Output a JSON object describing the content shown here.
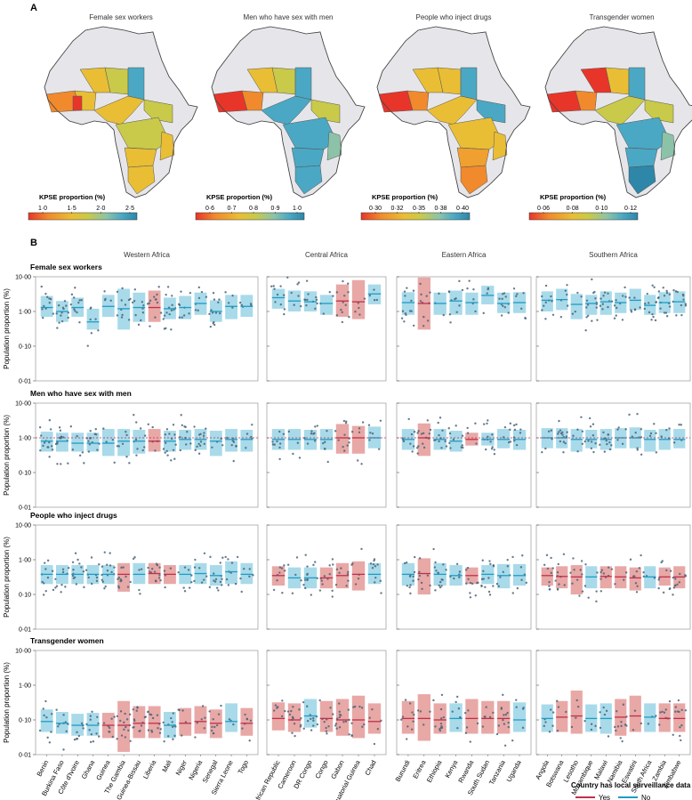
{
  "panel_a": {
    "label": "A",
    "maps": [
      {
        "title": "Female sex workers",
        "legend_title": "KPSE proportion (%)",
        "ticks": [
          "1·0",
          "1·5",
          "2·0",
          "2·5"
        ]
      },
      {
        "title": "Men who have sex with men",
        "legend_title": "KPSE proportion (%)",
        "ticks": [
          "0·6",
          "0·7",
          "0·8",
          "0·9",
          "1·0"
        ]
      },
      {
        "title": "People who inject drugs",
        "legend_title": "KPSE proportion (%)",
        "ticks": [
          "0·30",
          "0·32",
          "0·35",
          "0·38",
          "0·40"
        ]
      },
      {
        "title": "Transgender women",
        "legend_title": "KPSE proportion (%)",
        "ticks": [
          "0·06",
          "0·08",
          "0·10",
          "0·12"
        ]
      }
    ],
    "colorscale": [
      "#e8352a",
      "#f08a2c",
      "#e9be35",
      "#c9c94a",
      "#8cc3a8",
      "#4aa8c4",
      "#2e86a8"
    ]
  },
  "panel_b": {
    "label": "B",
    "ylabel": "Population proportion (%)",
    "y_ticks": [
      "0·01",
      "0·10",
      "1·00",
      "10·00"
    ],
    "legend": {
      "title": "Country has local surveillance data",
      "yes": "Yes",
      "no": "No"
    }
  },
  "colors": {
    "yes": "#c0304a",
    "yes_fill": "#e8a8a6",
    "no": "#1f9cc4",
    "no_fill": "#a8daea",
    "point": "#4a6478",
    "ref": "#c0304a"
  },
  "chart_data": {
    "type": "box-scatter",
    "scale": "log10",
    "ylim": [
      0.01,
      10
    ],
    "regions": [
      {
        "name": "Western Africa",
        "countries": [
          "Benin",
          "Burkina Faso",
          "Côte d'Ivoire",
          "Ghana",
          "Guinea",
          "The Gambia",
          "Guinea-Bissau",
          "Liberia",
          "Mali",
          "Niger",
          "Nigeria",
          "Senegal",
          "Sierra Leone",
          "Togo"
        ]
      },
      {
        "name": "Central Africa",
        "countries": [
          "Central African Republic",
          "Cameroon",
          "DR Congo",
          "Congo",
          "Gabon",
          "Equatorial Guinea",
          "Chad"
        ]
      },
      {
        "name": "Eastern Africa",
        "countries": [
          "Burundi",
          "Eritrea",
          "Ethiopia",
          "Kenya",
          "Rwanda",
          "South Sudan",
          "Tanzania",
          "Uganda"
        ]
      },
      {
        "name": "Southern Africa",
        "countries": [
          "Angola",
          "Botswana",
          "Lesotho",
          "Mozambique",
          "Malawi",
          "Namibia",
          "Eswatini",
          "South Africa",
          "Zambia",
          "Zimbabwe"
        ]
      }
    ],
    "series": [
      {
        "name": "Female sex workers",
        "median": [
          [
            1.3,
            1.0,
            1.3,
            0.5,
            1.4,
            1.2,
            1.3,
            1.3,
            1.2,
            1.3,
            1.7,
            1.0,
            1.4,
            1.4
          ],
          [
            2.5,
            2.0,
            1.9,
            1.7,
            2.0,
            1.9,
            3.2
          ],
          [
            1.8,
            1.7,
            1.7,
            2.0,
            1.8,
            2.9,
            1.7,
            1.8
          ],
          [
            2.1,
            2.2,
            1.6,
            1.7,
            1.9,
            1.8,
            2.1,
            1.5,
            1.8,
            1.9
          ]
        ],
        "low": [
          [
            0.7,
            0.5,
            0.7,
            0.3,
            0.7,
            0.3,
            0.5,
            0.5,
            0.6,
            0.6,
            0.8,
            0.5,
            0.6,
            0.7
          ],
          [
            1.2,
            1.0,
            1.0,
            0.8,
            0.7,
            0.6,
            1.6
          ],
          [
            0.8,
            0.3,
            0.8,
            0.8,
            0.8,
            1.6,
            0.9,
            0.9
          ],
          [
            1.0,
            1.1,
            0.6,
            0.8,
            0.8,
            0.9,
            1.1,
            0.8,
            0.9,
            0.9
          ]
        ],
        "high": [
          [
            2.8,
            2.0,
            2.5,
            1.2,
            3.0,
            4.5,
            3.5,
            4.0,
            2.5,
            2.8,
            3.5,
            2.1,
            3.0,
            3.0
          ],
          [
            4.5,
            4.0,
            3.8,
            3.0,
            6.0,
            8.0,
            6.0
          ],
          [
            3.6,
            9.5,
            3.5,
            4.0,
            3.5,
            5.5,
            3.5,
            3.6
          ],
          [
            3.8,
            4.5,
            3.2,
            3.0,
            3.8,
            3.5,
            4.5,
            3.0,
            3.6,
            3.8
          ]
        ],
        "surveillance": [
          [
            false,
            false,
            false,
            false,
            false,
            false,
            false,
            true,
            false,
            false,
            false,
            false,
            false,
            false
          ],
          [
            false,
            false,
            false,
            false,
            true,
            true,
            false
          ],
          [
            false,
            true,
            false,
            false,
            false,
            false,
            false,
            false
          ],
          [
            false,
            false,
            false,
            false,
            false,
            false,
            false,
            false,
            false,
            false
          ]
        ],
        "ref": null
      },
      {
        "name": "Men who have sex with men",
        "median": [
          [
            0.8,
            0.8,
            0.7,
            0.7,
            0.7,
            0.8,
            0.8,
            0.8,
            0.8,
            0.9,
            0.9,
            0.8,
            0.9,
            0.9
          ],
          [
            0.9,
            0.9,
            0.9,
            0.9,
            1.0,
            1.0,
            1.0
          ],
          [
            0.9,
            1.0,
            0.9,
            0.8,
            0.9,
            0.9,
            0.9,
            0.9
          ],
          [
            1.0,
            1.0,
            0.9,
            0.9,
            0.9,
            1.0,
            1.0,
            0.9,
            0.9,
            0.9
          ]
        ],
        "low": [
          [
            0.4,
            0.4,
            0.4,
            0.4,
            0.3,
            0.3,
            0.35,
            0.4,
            0.4,
            0.45,
            0.45,
            0.3,
            0.4,
            0.4
          ],
          [
            0.45,
            0.45,
            0.45,
            0.45,
            0.35,
            0.35,
            0.5
          ],
          [
            0.45,
            0.3,
            0.45,
            0.4,
            0.6,
            0.6,
            0.5,
            0.45
          ],
          [
            0.5,
            0.5,
            0.4,
            0.5,
            0.45,
            0.5,
            0.5,
            0.4,
            0.45,
            0.5
          ]
        ],
        "high": [
          [
            1.5,
            1.4,
            1.4,
            1.4,
            1.8,
            1.8,
            1.7,
            1.8,
            1.6,
            1.7,
            1.8,
            1.6,
            1.8,
            1.7
          ],
          [
            1.8,
            1.8,
            1.7,
            1.8,
            2.5,
            2.2,
            2.1
          ],
          [
            1.8,
            2.6,
            1.8,
            1.6,
            1.4,
            1.4,
            1.8,
            1.7
          ],
          [
            1.9,
            1.9,
            1.8,
            1.7,
            1.8,
            1.9,
            2.0,
            1.7,
            1.8,
            1.8
          ]
        ],
        "surveillance": [
          [
            false,
            false,
            false,
            false,
            false,
            false,
            false,
            true,
            false,
            false,
            false,
            false,
            false,
            false
          ],
          [
            false,
            false,
            false,
            false,
            true,
            true,
            false
          ],
          [
            false,
            true,
            false,
            false,
            true,
            false,
            false,
            false
          ],
          [
            false,
            false,
            false,
            false,
            false,
            false,
            false,
            false,
            false,
            false
          ]
        ],
        "ref": 1.0
      },
      {
        "name": "People who inject drugs",
        "median": [
          [
            0.38,
            0.38,
            0.38,
            0.38,
            0.38,
            0.38,
            0.38,
            0.4,
            0.38,
            0.38,
            0.4,
            0.35,
            0.45,
            0.38
          ],
          [
            0.35,
            0.3,
            0.3,
            0.3,
            0.35,
            0.38,
            0.38
          ],
          [
            0.38,
            0.4,
            0.38,
            0.35,
            0.35,
            0.38,
            0.35,
            0.35
          ],
          [
            0.35,
            0.33,
            0.32,
            0.32,
            0.33,
            0.32,
            0.3,
            0.32,
            0.32,
            0.32
          ]
        ],
        "low": [
          [
            0.2,
            0.2,
            0.2,
            0.2,
            0.2,
            0.12,
            0.2,
            0.2,
            0.2,
            0.2,
            0.2,
            0.18,
            0.2,
            0.2
          ],
          [
            0.18,
            0.15,
            0.15,
            0.15,
            0.15,
            0.13,
            0.2
          ],
          [
            0.18,
            0.1,
            0.18,
            0.18,
            0.2,
            0.2,
            0.15,
            0.18
          ],
          [
            0.18,
            0.15,
            0.1,
            0.15,
            0.15,
            0.15,
            0.13,
            0.15,
            0.18,
            0.15
          ]
        ],
        "high": [
          [
            0.7,
            0.7,
            0.7,
            0.7,
            0.7,
            0.8,
            0.8,
            0.8,
            0.7,
            0.7,
            0.8,
            0.7,
            0.9,
            0.8
          ],
          [
            0.65,
            0.6,
            0.6,
            0.6,
            0.8,
            0.9,
            0.8
          ],
          [
            0.8,
            1.1,
            0.8,
            0.7,
            0.6,
            0.7,
            0.75,
            0.75
          ],
          [
            0.6,
            0.65,
            0.7,
            0.65,
            0.65,
            0.65,
            0.6,
            0.65,
            0.6,
            0.65
          ]
        ],
        "surveillance": [
          [
            false,
            false,
            false,
            false,
            false,
            true,
            false,
            true,
            true,
            false,
            false,
            false,
            false,
            false
          ],
          [
            true,
            false,
            false,
            true,
            true,
            true,
            false
          ],
          [
            false,
            true,
            false,
            false,
            true,
            false,
            false,
            false
          ],
          [
            true,
            true,
            true,
            false,
            true,
            true,
            true,
            false,
            true,
            true
          ]
        ],
        "ref": null
      },
      {
        "name": "Transgender women",
        "median": [
          [
            0.09,
            0.08,
            0.07,
            0.07,
            0.07,
            0.07,
            0.08,
            0.08,
            0.07,
            0.08,
            0.09,
            0.08,
            0.09,
            0.08
          ],
          [
            0.11,
            0.1,
            0.13,
            0.11,
            0.1,
            0.1,
            0.09
          ],
          [
            0.11,
            0.11,
            0.1,
            0.11,
            0.11,
            0.11,
            0.11,
            0.1
          ],
          [
            0.11,
            0.12,
            0.13,
            0.11,
            0.11,
            0.12,
            0.13,
            0.12,
            0.11,
            0.11
          ]
        ],
        "low": [
          [
            0.045,
            0.04,
            0.035,
            0.035,
            0.03,
            0.012,
            0.03,
            0.03,
            0.03,
            0.035,
            0.04,
            0.03,
            0.045,
            0.035
          ],
          [
            0.05,
            0.045,
            0.06,
            0.045,
            0.035,
            0.03,
            0.04
          ],
          [
            0.04,
            0.025,
            0.04,
            0.045,
            0.04,
            0.04,
            0.04,
            0.045
          ],
          [
            0.045,
            0.045,
            0.04,
            0.045,
            0.04,
            0.035,
            0.045,
            0.045,
            0.045,
            0.045
          ]
        ],
        "high": [
          [
            0.2,
            0.17,
            0.15,
            0.16,
            0.16,
            0.35,
            0.25,
            0.25,
            0.17,
            0.22,
            0.25,
            0.2,
            0.3,
            0.22
          ],
          [
            0.32,
            0.3,
            0.4,
            0.35,
            0.4,
            0.5,
            0.3
          ],
          [
            0.35,
            0.55,
            0.3,
            0.3,
            0.4,
            0.35,
            0.35,
            0.32
          ],
          [
            0.28,
            0.35,
            0.7,
            0.28,
            0.3,
            0.4,
            0.5,
            0.3,
            0.3,
            0.3
          ]
        ],
        "surveillance": [
          [
            false,
            false,
            false,
            false,
            true,
            true,
            true,
            true,
            false,
            true,
            true,
            true,
            false,
            true
          ],
          [
            true,
            true,
            false,
            true,
            true,
            true,
            true
          ],
          [
            true,
            true,
            true,
            false,
            true,
            true,
            true,
            false
          ],
          [
            false,
            true,
            true,
            false,
            false,
            true,
            true,
            false,
            true,
            true
          ]
        ],
        "ref": null
      }
    ]
  }
}
